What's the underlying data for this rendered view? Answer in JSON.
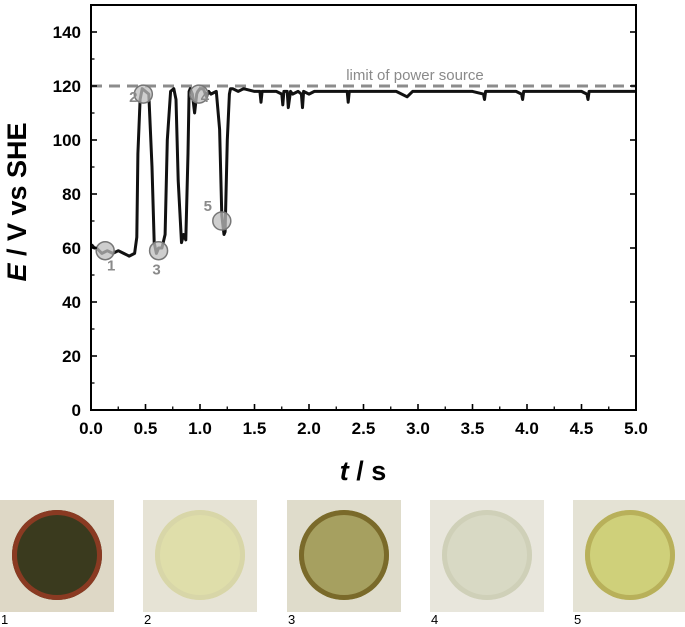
{
  "chart_data": {
    "type": "line",
    "title": "",
    "xlabel_italic": "t",
    "xlabel_unit": " / s",
    "ylabel_italic": "E",
    "ylabel_unit": " / V vs SHE",
    "xlim": [
      0.0,
      5.0
    ],
    "ylim": [
      0,
      150
    ],
    "xticks": [
      "0.0",
      "0.5",
      "1.0",
      "1.5",
      "2.0",
      "2.5",
      "3.0",
      "3.5",
      "4.0",
      "4.5",
      "5.0"
    ],
    "xtick_values": [
      0,
      0.5,
      1.0,
      1.5,
      2.0,
      2.5,
      3.0,
      3.5,
      4.0,
      4.5,
      5.0
    ],
    "yticks": [
      "0",
      "20",
      "40",
      "60",
      "80",
      "100",
      "120",
      "140"
    ],
    "ytick_values": [
      0,
      20,
      40,
      60,
      80,
      100,
      120,
      140
    ],
    "series": [
      {
        "color": "#111111",
        "x": [
          0.0,
          0.01,
          0.03,
          0.05,
          0.1,
          0.15,
          0.2,
          0.25,
          0.3,
          0.35,
          0.4,
          0.42,
          0.43,
          0.45,
          0.47,
          0.5,
          0.53,
          0.56,
          0.58,
          0.6,
          0.62,
          0.65,
          0.68,
          0.7,
          0.73,
          0.76,
          0.78,
          0.8,
          0.83,
          0.85,
          0.87,
          0.89,
          0.9,
          0.91,
          0.93,
          0.95,
          0.97,
          0.98,
          1.0,
          1.03,
          1.06,
          1.08,
          1.1,
          1.15,
          1.18,
          1.2,
          1.22,
          1.23,
          1.25,
          1.27,
          1.28,
          1.3,
          1.35,
          1.4,
          1.5,
          1.55,
          1.56,
          1.57,
          1.6,
          1.7,
          1.75,
          1.76,
          1.77,
          1.8,
          1.81,
          1.83,
          1.85,
          1.9,
          1.93,
          1.94,
          1.95,
          2.0,
          2.05,
          2.1,
          2.2,
          2.35,
          2.36,
          2.37,
          2.5,
          2.6,
          2.8,
          2.9,
          2.95,
          3.0,
          3.1,
          3.2,
          3.4,
          3.5,
          3.6,
          3.61,
          3.62,
          3.7,
          3.9,
          3.95,
          3.96,
          3.97,
          4.1,
          4.3,
          4.5,
          4.55,
          4.56,
          4.57,
          4.7,
          4.8,
          4.9,
          5.0
        ],
        "y": [
          61,
          61,
          60,
          60,
          58,
          59,
          58,
          59,
          58,
          57,
          58,
          64,
          95,
          115,
          119,
          118,
          117,
          90,
          62,
          58,
          60,
          60,
          65,
          100,
          118,
          119,
          115,
          85,
          62,
          65,
          63,
          95,
          118,
          119,
          117,
          110,
          117,
          118,
          119,
          119,
          116,
          118,
          117,
          118,
          104,
          72,
          65,
          66,
          100,
          117,
          119,
          119,
          118,
          119,
          118,
          118,
          114,
          118,
          118,
          118,
          117,
          113,
          118,
          118,
          112,
          118,
          117,
          118,
          117,
          112,
          118,
          117,
          118,
          118,
          118,
          118,
          114,
          118,
          118,
          118,
          118,
          116,
          118,
          118,
          118,
          118,
          118,
          118,
          117,
          115,
          118,
          118,
          118,
          117,
          115,
          118,
          118,
          118,
          118,
          117,
          115,
          118,
          118,
          118,
          118,
          118
        ]
      }
    ],
    "limit_line": {
      "y": 120,
      "label": "limit of power source"
    },
    "markers": [
      {
        "label": "1",
        "x": 0.13,
        "y": 59
      },
      {
        "label": "2",
        "x": 0.48,
        "y": 117
      },
      {
        "label": "3",
        "x": 0.62,
        "y": 59
      },
      {
        "label": "4",
        "x": 0.99,
        "y": 117
      },
      {
        "label": "5",
        "x": 1.2,
        "y": 70
      }
    ]
  },
  "photos": [
    {
      "caption": "1",
      "bg": "#ded8c6",
      "dish": "#3a3a1e",
      "rim": "#8a3a22"
    },
    {
      "caption": "2",
      "bg": "#e6e3d5",
      "dish": "#dfdeaa",
      "rim": "#d8d6a8"
    },
    {
      "caption": "3",
      "bg": "#dfdccb",
      "dish": "#a6a060",
      "rim": "#7a6a2a"
    },
    {
      "caption": "4",
      "bg": "#e8e6dc",
      "dish": "#d8d9c4",
      "rim": "#cfd0b8"
    },
    {
      "caption": "5",
      "bg": "#e4e2d4",
      "dish": "#cfd07a",
      "rim": "#b8b05a"
    }
  ]
}
